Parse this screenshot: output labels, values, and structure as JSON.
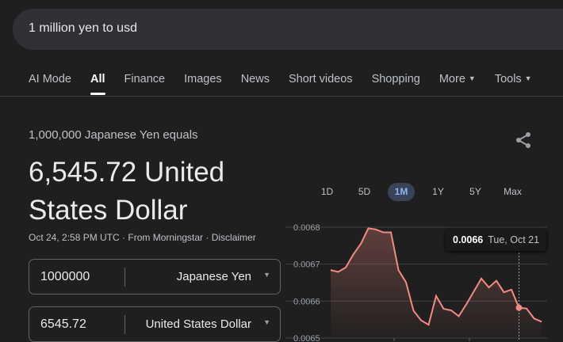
{
  "search": {
    "query": "1 million yen to usd"
  },
  "tabs": [
    {
      "label": "AI Mode"
    },
    {
      "label": "All",
      "active": true
    },
    {
      "label": "Finance"
    },
    {
      "label": "Images"
    },
    {
      "label": "News"
    },
    {
      "label": "Short videos"
    },
    {
      "label": "Shopping"
    },
    {
      "label": "More",
      "dropdown": true
    },
    {
      "label": "Tools",
      "dropdown": true
    }
  ],
  "converter": {
    "equals_text": "1,000,000 Japanese Yen equals",
    "result": "6,545.72 United States Dollar",
    "meta": "Oct 24, 2:58 PM UTC · From Morningstar · Disclaimer",
    "from_amount": "1000000",
    "from_currency": "Japanese Yen",
    "to_amount": "6545.72",
    "to_currency": "United States Dollar"
  },
  "ranges": [
    "1D",
    "5D",
    "1M",
    "1Y",
    "5Y",
    "Max"
  ],
  "active_range": "1M",
  "tooltip": {
    "value": "0.0066",
    "date": "Tue, Oct 21"
  },
  "colors": {
    "line": "#f28b82",
    "accent": "#8ab4f8"
  },
  "chart_data": {
    "type": "area",
    "ylim": [
      0.0065,
      0.0068
    ],
    "yticks": [
      "0.0068",
      "0.0067",
      "0.0066",
      "0.0065"
    ],
    "grid": true,
    "values": [
      0.006684,
      0.006679,
      0.006691,
      0.006726,
      0.006755,
      0.006797,
      0.006794,
      0.006786,
      0.006786,
      0.006684,
      0.006651,
      0.006574,
      0.006548,
      0.006536,
      0.006614,
      0.006579,
      0.006575,
      0.006559,
      0.006591,
      0.006626,
      0.006661,
      0.006637,
      0.006655,
      0.006624,
      0.006631,
      0.006582,
      0.00658,
      0.006553,
      0.006544
    ],
    "highlight_index": 25
  }
}
